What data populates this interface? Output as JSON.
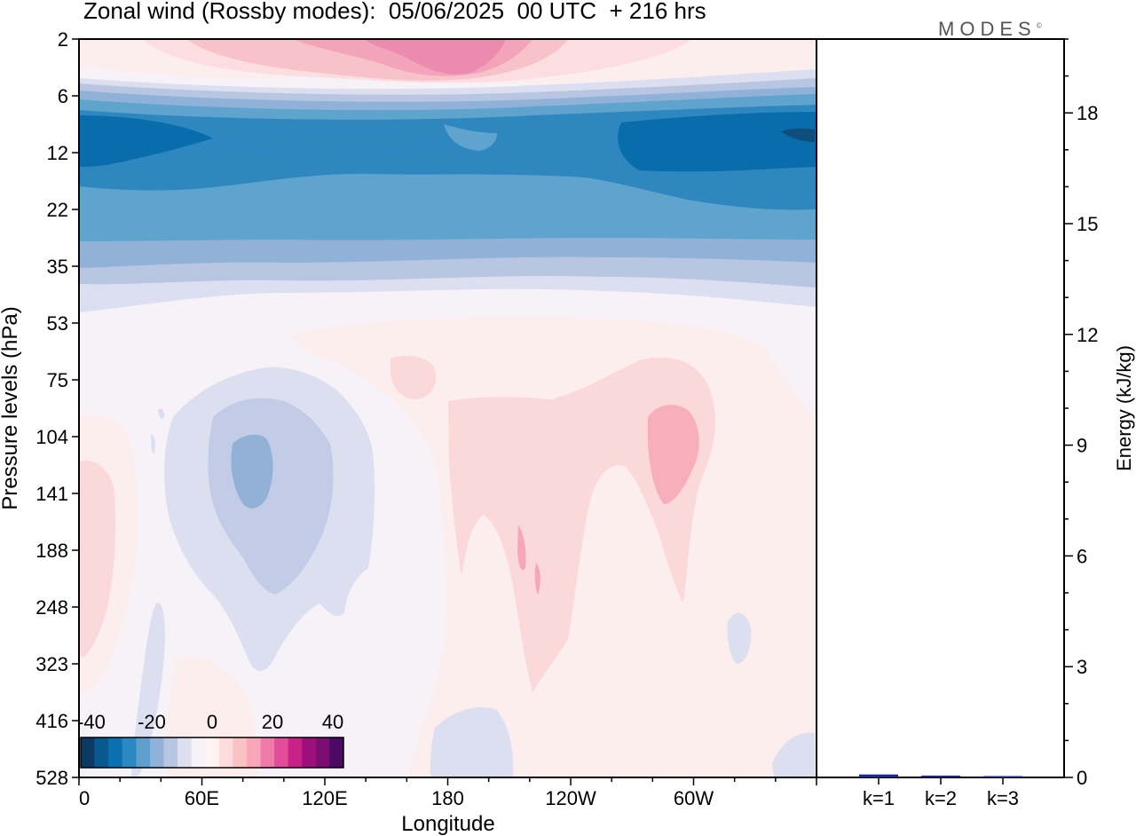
{
  "chart_data": {
    "type": "heatmap",
    "title": "Zonal wind (Rossby modes):  05/06/2025  00 UTC  + 216 hrs",
    "brand": "MODES",
    "brand_mark": "©",
    "xlabel": "Longitude",
    "ylabel": "Pressure levels (hPa)",
    "x_ticks": [
      "0",
      "60E",
      "120E",
      "180",
      "120W",
      "60W"
    ],
    "y_ticks": [
      "2",
      "6",
      "12",
      "22",
      "35",
      "53",
      "75",
      "104",
      "141",
      "188",
      "248",
      "323",
      "416",
      "528"
    ],
    "colorbar": {
      "labels": [
        "-40",
        "-20",
        "0",
        "20",
        "40"
      ],
      "colors": [
        "#0b3b63",
        "#08598f",
        "#0a70b0",
        "#2c88c2",
        "#5c9ecc",
        "#90b2d8",
        "#b9c6e2",
        "#dcdff0",
        "#f6f2f8",
        "#fdf3f3",
        "#fddcdc",
        "#fbc2c6",
        "#f8a6b7",
        "#f07aa7",
        "#e24c98",
        "#c8228a",
        "#9e0f7b",
        "#7a0d72",
        "#4b0a63"
      ]
    },
    "energy_bars": {
      "type": "bar",
      "ylabel": "Energy (kJ/kg)",
      "ylim": [
        0,
        20
      ],
      "y_ticks": [
        "0",
        "3",
        "6",
        "9",
        "12",
        "15",
        "18"
      ],
      "categories": [
        "k=1",
        "k=2",
        "k=3"
      ],
      "values": [
        0.08,
        0.05,
        0.03
      ],
      "bar_color": "#1a2a8a"
    },
    "colors": {
      "background_field": "#f6f2f8"
    }
  }
}
